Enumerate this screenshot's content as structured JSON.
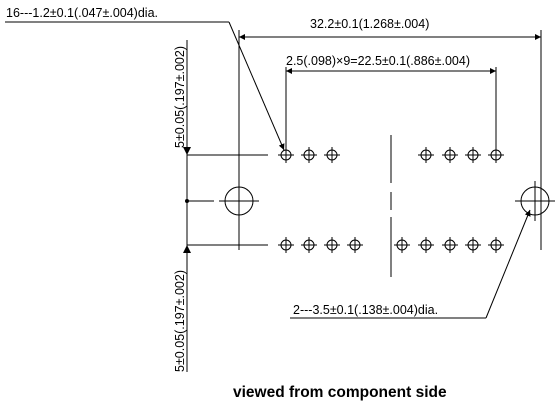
{
  "dimensions": {
    "pin_hole_callout": "16---1.2±0.1(.047±.004)dia.",
    "overall_width": "32.2±0.1(1.268±.004)",
    "pin_pitch": "2.5(.098)×9=22.5±0.1(.886±.004)",
    "upper_row_offset": "5±0.05(.197±.002)",
    "lower_row_offset": "5±0.05(.197±.002)",
    "mount_hole_callout": "2---3.5±0.1(.138±.004)dia."
  },
  "caption": "viewed from component side",
  "pins": {
    "upper_row_count": 7,
    "lower_row_count": 9
  }
}
